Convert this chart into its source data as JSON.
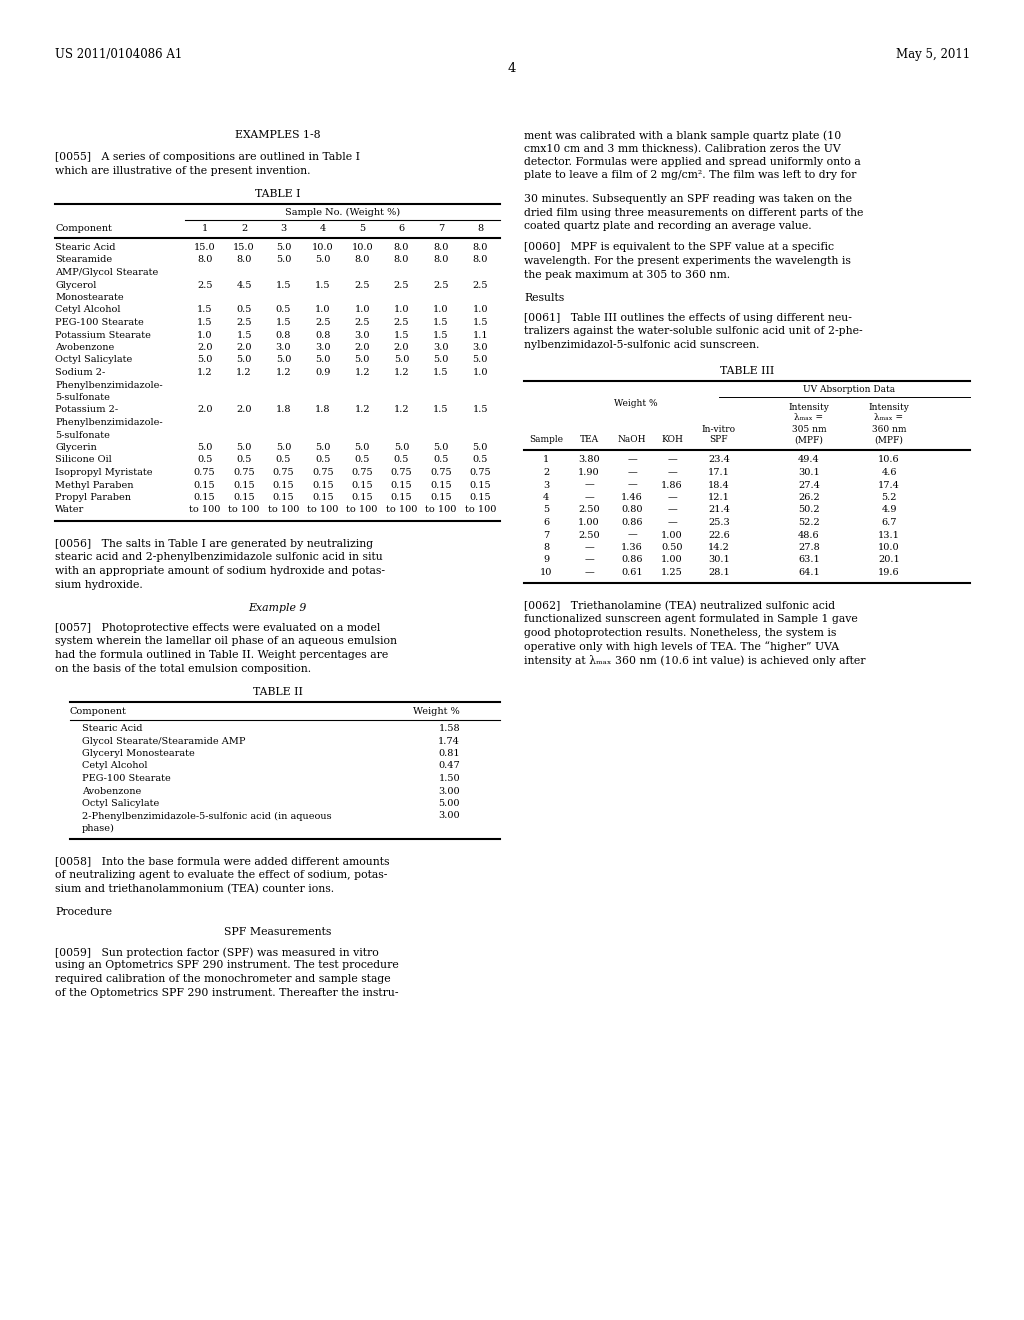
{
  "header_left": "US 2011/0104086 A1",
  "header_right": "May 5, 2011",
  "page_number": "4",
  "background_color": "#ffffff",
  "section1_title": "EXAMPLES 1-8",
  "section1_para": "[0055]   A series of compositions are outlined in Table I\nwhich are illustrative of the present invention.",
  "table1_title": "TABLE I",
  "table1_subheader": "Sample No. (Weight %)",
  "table1_rows": [
    [
      "Stearic Acid",
      "15.0",
      "15.0",
      "5.0",
      "10.0",
      "10.0",
      "8.0",
      "8.0",
      "8.0"
    ],
    [
      "Stearamide",
      "8.0",
      "8.0",
      "5.0",
      "5.0",
      "8.0",
      "8.0",
      "8.0",
      "8.0"
    ],
    [
      "AMP/Glycol Stearate",
      "",
      "",
      "",
      "",
      "",
      "",
      "",
      ""
    ],
    [
      "Glycerol",
      "2.5",
      "4.5",
      "1.5",
      "1.5",
      "2.5",
      "2.5",
      "2.5",
      "2.5"
    ],
    [
      "Monostearate",
      "",
      "",
      "",
      "",
      "",
      "",
      "",
      ""
    ],
    [
      "Cetyl Alcohol",
      "1.5",
      "0.5",
      "0.5",
      "1.0",
      "1.0",
      "1.0",
      "1.0",
      "1.0"
    ],
    [
      "PEG-100 Stearate",
      "1.5",
      "2.5",
      "1.5",
      "2.5",
      "2.5",
      "2.5",
      "1.5",
      "1.5"
    ],
    [
      "Potassium Stearate",
      "1.0",
      "1.5",
      "0.8",
      "0.8",
      "3.0",
      "1.5",
      "1.5",
      "1.1"
    ],
    [
      "Avobenzone",
      "2.0",
      "2.0",
      "3.0",
      "3.0",
      "2.0",
      "2.0",
      "3.0",
      "3.0"
    ],
    [
      "Octyl Salicylate",
      "5.0",
      "5.0",
      "5.0",
      "5.0",
      "5.0",
      "5.0",
      "5.0",
      "5.0"
    ],
    [
      "Sodium 2-",
      "1.2",
      "1.2",
      "1.2",
      "0.9",
      "1.2",
      "1.2",
      "1.5",
      "1.0"
    ],
    [
      "Phenylbenzimidazole-",
      "",
      "",
      "",
      "",
      "",
      "",
      "",
      ""
    ],
    [
      "5-sulfonate",
      "",
      "",
      "",
      "",
      "",
      "",
      "",
      ""
    ],
    [
      "Potassium 2-",
      "2.0",
      "2.0",
      "1.8",
      "1.8",
      "1.2",
      "1.2",
      "1.5",
      "1.5"
    ],
    [
      "Phenylbenzimidazole-",
      "",
      "",
      "",
      "",
      "",
      "",
      "",
      ""
    ],
    [
      "5-sulfonate",
      "",
      "",
      "",
      "",
      "",
      "",
      "",
      ""
    ],
    [
      "Glycerin",
      "5.0",
      "5.0",
      "5.0",
      "5.0",
      "5.0",
      "5.0",
      "5.0",
      "5.0"
    ],
    [
      "Silicone Oil",
      "0.5",
      "0.5",
      "0.5",
      "0.5",
      "0.5",
      "0.5",
      "0.5",
      "0.5"
    ],
    [
      "Isopropyl Myristate",
      "0.75",
      "0.75",
      "0.75",
      "0.75",
      "0.75",
      "0.75",
      "0.75",
      "0.75"
    ],
    [
      "Methyl Paraben",
      "0.15",
      "0.15",
      "0.15",
      "0.15",
      "0.15",
      "0.15",
      "0.15",
      "0.15"
    ],
    [
      "Propyl Paraben",
      "0.15",
      "0.15",
      "0.15",
      "0.15",
      "0.15",
      "0.15",
      "0.15",
      "0.15"
    ],
    [
      "Water",
      "to 100",
      "to 100",
      "to 100",
      "to 100",
      "to 100",
      "to 100",
      "to 100",
      "to 100"
    ]
  ],
  "section2_para1_lines": [
    "[0056]   The salts in Table I are generated by neutralizing",
    "stearic acid and 2-phenylbenzimidazole sulfonic acid in situ",
    "with an appropriate amount of sodium hydroxide and potas-",
    "sium hydroxide."
  ],
  "section2_ex9": "Example 9",
  "section2_para2_lines": [
    "[0057]   Photoprotective effects were evaluated on a model",
    "system wherein the lamellar oil phase of an aqueous emulsion",
    "had the formula outlined in Table II. Weight percentages are",
    "on the basis of the total emulsion composition."
  ],
  "table2_title": "TABLE II",
  "table2_rows": [
    [
      "Stearic Acid",
      "1.58"
    ],
    [
      "Glycol Stearate/Stearamide AMP",
      "1.74"
    ],
    [
      "Glyceryl Monostearate",
      "0.81"
    ],
    [
      "Cetyl Alcohol",
      "0.47"
    ],
    [
      "PEG-100 Stearate",
      "1.50"
    ],
    [
      "Avobenzone",
      "3.00"
    ],
    [
      "Octyl Salicylate",
      "5.00"
    ],
    [
      "2-Phenylbenzimidazole-5-sulfonic acid (in aqueous",
      "3.00"
    ],
    [
      "phase)",
      ""
    ]
  ],
  "section3_para1_lines": [
    "[0058]   Into the base formula were added different amounts",
    "of neutralizing agent to evaluate the effect of sodium, potas-",
    "sium and triethanolammonium (TEA) counter ions."
  ],
  "section3_proc": "Procedure",
  "section3_spf": "SPF Measurements",
  "section3_para2_lines": [
    "[0059]   Sun protection factor (SPF) was measured in vitro",
    "using an Optometrics SPF 290 instrument. The test procedure",
    "required calibration of the monochrometer and sample stage",
    "of the Optometrics SPF 290 instrument. Thereafter the instru-"
  ],
  "right_para1_lines": [
    "ment was calibrated with a blank sample quartz plate (10",
    "cmx10 cm and 3 mm thickness). Calibration zeros the UV",
    "detector. Formulas were applied and spread uniformly onto a",
    "plate to leave a film of 2 mg/cm². The film was left to dry for"
  ],
  "right_para2_lines": [
    "30 minutes. Subsequently an SPF reading was taken on the",
    "dried film using three measurements on different parts of the",
    "coated quartz plate and recording an average value."
  ],
  "right_para3_lines": [
    "[0060]   MPF is equivalent to the SPF value at a specific",
    "wavelength. For the present experiments the wavelength is",
    "the peak maximum at 305 to 360 nm."
  ],
  "right_results": "Results",
  "right_para4_lines": [
    "[0061]   Table III outlines the effects of using different neu-",
    "tralizers against the water-soluble sulfonic acid unit of 2-phe-",
    "nylbenzimidazol-5-sulfonic acid sunscreen."
  ],
  "table3_title": "TABLE III",
  "table3_rows": [
    [
      "1",
      "3.80",
      "—",
      "—",
      "23.4",
      "49.4",
      "10.6"
    ],
    [
      "2",
      "1.90",
      "—",
      "—",
      "17.1",
      "30.1",
      "4.6"
    ],
    [
      "3",
      "—",
      "—",
      "1.86",
      "18.4",
      "27.4",
      "17.4"
    ],
    [
      "4",
      "—",
      "1.46",
      "—",
      "12.1",
      "26.2",
      "5.2"
    ],
    [
      "5",
      "2.50",
      "0.80",
      "—",
      "21.4",
      "50.2",
      "4.9"
    ],
    [
      "6",
      "1.00",
      "0.86",
      "—",
      "25.3",
      "52.2",
      "6.7"
    ],
    [
      "7",
      "2.50",
      "—",
      "1.00",
      "22.6",
      "48.6",
      "13.1"
    ],
    [
      "8",
      "—",
      "1.36",
      "0.50",
      "14.2",
      "27.8",
      "10.0"
    ],
    [
      "9",
      "—",
      "0.86",
      "1.00",
      "30.1",
      "63.1",
      "20.1"
    ],
    [
      "10",
      "—",
      "0.61",
      "1.25",
      "28.1",
      "64.1",
      "19.6"
    ]
  ],
  "right_para5_lines": [
    "[0062]   Triethanolamine (TEA) neutralized sulfonic acid",
    "functionalized sunscreen agent formulated in Sample 1 gave",
    "good photoprotection results. Nonetheless, the system is",
    "operative only with high levels of TEA. The “higher” UVA",
    "intensity at λₘₐₓ 360 nm (10.6 int value) is achieved only after"
  ]
}
